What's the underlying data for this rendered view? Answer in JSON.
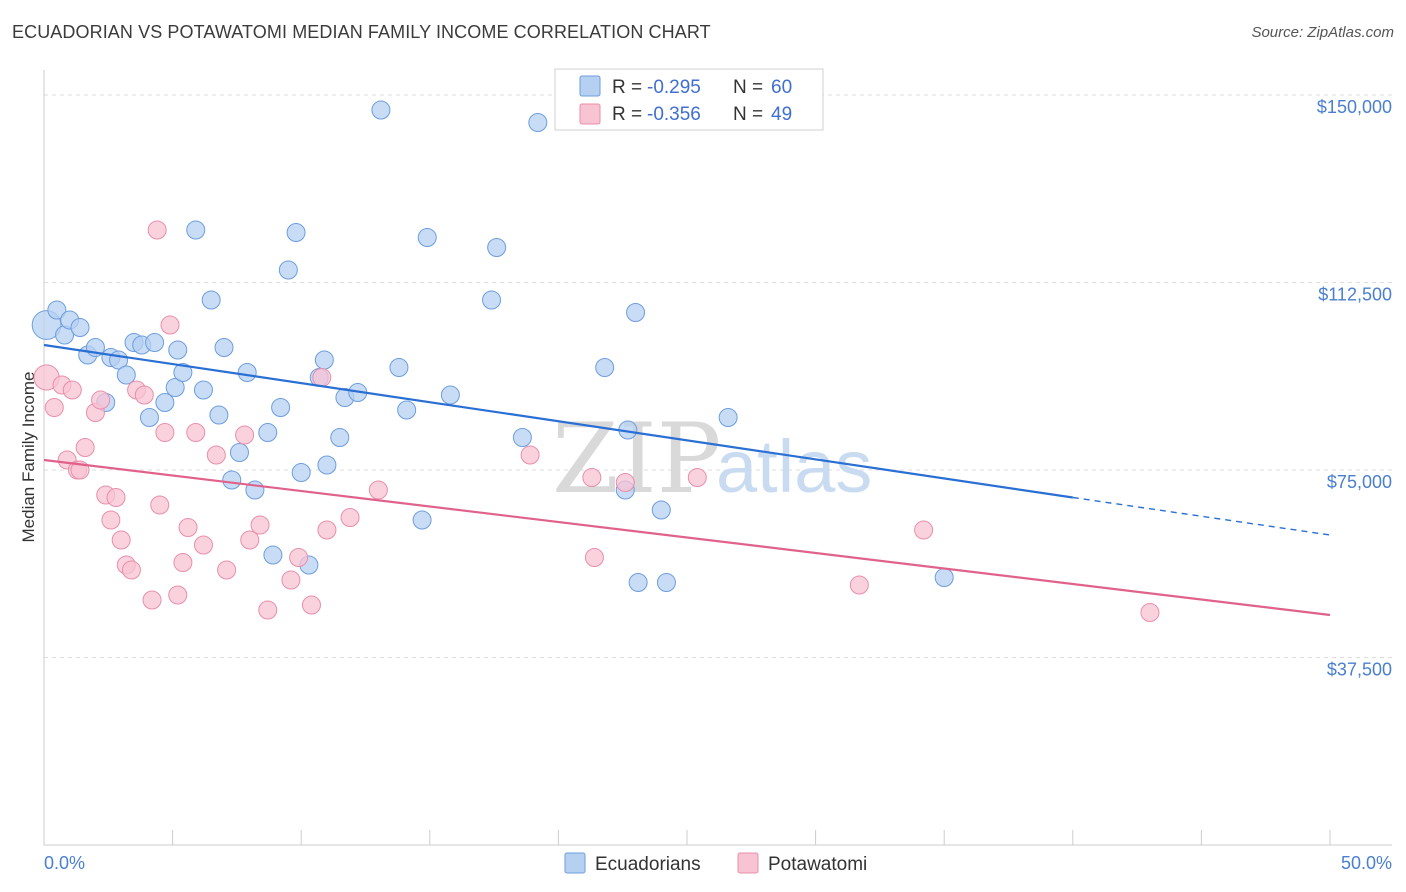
{
  "header": {
    "title": "ECUADORIAN VS POTAWATOMI MEDIAN FAMILY INCOME CORRELATION CHART",
    "source": "Source: ZipAtlas.com"
  },
  "watermark": {
    "zip": "ZIP",
    "atlas": "atlas"
  },
  "legend": {
    "rows": [
      {
        "r_label": "R =",
        "r_value": "-0.295",
        "n_label": "N =",
        "n_value": "60"
      },
      {
        "r_label": "R =",
        "r_value": "-0.356",
        "n_label": "N =",
        "n_value": "49"
      }
    ]
  },
  "bottom_legend": {
    "items": [
      "Ecuadorians",
      "Potawatomi"
    ]
  },
  "colors": {
    "blue_fill": "#b6d0f1",
    "blue_stroke": "#6d9ede",
    "blue_line": "#2a6fd4",
    "pink_fill": "#f8c3d3",
    "pink_stroke": "#e98fab",
    "pink_line": "#e0628b",
    "grid": "#dddddd",
    "axis": "#cccccc"
  },
  "chart_data": {
    "type": "scatter",
    "title": "ECUADORIAN VS POTAWATOMI MEDIAN FAMILY INCOME CORRELATION CHART",
    "xlabel": "",
    "ylabel": "Median Family Income",
    "xlim": [
      0,
      50
    ],
    "ylim": [
      0,
      155000
    ],
    "x_tick_labels": [
      "0.0%",
      "50.0%"
    ],
    "y_ticks": [
      37500,
      75000,
      112500,
      150000
    ],
    "y_tick_labels": [
      "$37,500",
      "$75,000",
      "$112,500",
      "$150,000"
    ],
    "series": [
      {
        "name": "Ecuadorians",
        "r": -0.295,
        "n": 60,
        "trend": {
          "x0": 0,
          "y0": 100000,
          "x1": 40,
          "y1": 69500,
          "dash_to_x": 50,
          "dash_to_y": 62000
        },
        "points": [
          [
            0.1,
            104000,
            1.6
          ],
          [
            0.5,
            107000,
            1.0
          ],
          [
            0.8,
            102000,
            1.0
          ],
          [
            1.0,
            105000,
            1.0
          ],
          [
            1.4,
            103500,
            1.0
          ],
          [
            1.7,
            98000,
            1.0
          ],
          [
            2.0,
            99500,
            1.0
          ],
          [
            2.4,
            88500,
            1.0
          ],
          [
            2.6,
            97500,
            1.0
          ],
          [
            2.9,
            97000,
            1.0
          ],
          [
            3.2,
            94000,
            1.0
          ],
          [
            3.5,
            100500,
            1.0
          ],
          [
            3.8,
            100000,
            1.0
          ],
          [
            4.1,
            85500,
            1.0
          ],
          [
            4.3,
            100500,
            1.0
          ],
          [
            4.7,
            88500,
            1.0
          ],
          [
            5.1,
            91500,
            1.0
          ],
          [
            5.2,
            99000,
            1.0
          ],
          [
            5.4,
            94500,
            1.0
          ],
          [
            5.9,
            123000,
            1.0
          ],
          [
            6.2,
            91000,
            1.0
          ],
          [
            6.5,
            109000,
            1.0
          ],
          [
            6.8,
            86000,
            1.0
          ],
          [
            7.0,
            99500,
            1.0
          ],
          [
            7.3,
            73000,
            1.0
          ],
          [
            7.6,
            78500,
            1.0
          ],
          [
            7.9,
            94500,
            1.0
          ],
          [
            8.2,
            71000,
            1.0
          ],
          [
            8.7,
            82500,
            1.0
          ],
          [
            8.9,
            58000,
            1.0
          ],
          [
            9.2,
            87500,
            1.0
          ],
          [
            9.5,
            115000,
            1.0
          ],
          [
            9.8,
            122500,
            1.0
          ],
          [
            10.0,
            74500,
            1.0
          ],
          [
            10.3,
            56000,
            1.0
          ],
          [
            10.7,
            93500,
            1.0
          ],
          [
            10.9,
            97000,
            1.0
          ],
          [
            11.0,
            76000,
            1.0
          ],
          [
            11.5,
            81500,
            1.0
          ],
          [
            11.7,
            89500,
            1.0
          ],
          [
            12.2,
            90500,
            1.0
          ],
          [
            13.1,
            147000,
            1.0
          ],
          [
            13.8,
            95500,
            1.0
          ],
          [
            14.1,
            87000,
            1.0
          ],
          [
            14.7,
            65000,
            1.0
          ],
          [
            14.9,
            121500,
            1.0
          ],
          [
            15.8,
            90000,
            1.0
          ],
          [
            17.4,
            109000,
            1.0
          ],
          [
            17.6,
            119500,
            1.0
          ],
          [
            18.6,
            81500,
            1.0
          ],
          [
            19.2,
            144500,
            1.0
          ],
          [
            21.8,
            95500,
            1.0
          ],
          [
            22.6,
            71000,
            1.0
          ],
          [
            22.7,
            83000,
            1.0
          ],
          [
            23.0,
            106500,
            1.0
          ],
          [
            23.1,
            52500,
            1.0
          ],
          [
            24.0,
            67000,
            1.0
          ],
          [
            24.2,
            52500,
            1.0
          ],
          [
            26.6,
            85500,
            1.0
          ],
          [
            35.0,
            53500,
            1.0
          ]
        ]
      },
      {
        "name": "Potawatomi",
        "r": -0.356,
        "n": 49,
        "trend": {
          "x0": 0,
          "y0": 77000,
          "x1": 50,
          "y1": 46000
        },
        "points": [
          [
            0.1,
            93500,
            1.4
          ],
          [
            0.4,
            87500,
            1.0
          ],
          [
            0.7,
            92000,
            1.0
          ],
          [
            0.9,
            77000,
            1.0
          ],
          [
            1.1,
            91000,
            1.0
          ],
          [
            1.3,
            75000,
            1.0
          ],
          [
            1.4,
            75000,
            1.0
          ],
          [
            1.6,
            79500,
            1.0
          ],
          [
            2.0,
            86500,
            1.0
          ],
          [
            2.2,
            89000,
            1.0
          ],
          [
            2.4,
            70000,
            1.0
          ],
          [
            2.6,
            65000,
            1.0
          ],
          [
            2.8,
            69500,
            1.0
          ],
          [
            3.0,
            61000,
            1.0
          ],
          [
            3.2,
            56000,
            1.0
          ],
          [
            3.4,
            55000,
            1.0
          ],
          [
            3.6,
            91000,
            1.0
          ],
          [
            3.9,
            90000,
            1.0
          ],
          [
            4.2,
            49000,
            1.0
          ],
          [
            4.4,
            123000,
            1.0
          ],
          [
            4.5,
            68000,
            1.0
          ],
          [
            4.7,
            82500,
            1.0
          ],
          [
            4.9,
            104000,
            1.0
          ],
          [
            5.2,
            50000,
            1.0
          ],
          [
            5.4,
            56500,
            1.0
          ],
          [
            5.6,
            63500,
            1.0
          ],
          [
            5.9,
            82500,
            1.0
          ],
          [
            6.2,
            60000,
            1.0
          ],
          [
            6.7,
            78000,
            1.0
          ],
          [
            7.1,
            55000,
            1.0
          ],
          [
            7.8,
            82000,
            1.0
          ],
          [
            8.0,
            61000,
            1.0
          ],
          [
            8.4,
            64000,
            1.0
          ],
          [
            8.7,
            47000,
            1.0
          ],
          [
            9.6,
            53000,
            1.0
          ],
          [
            9.9,
            57500,
            1.0
          ],
          [
            10.4,
            48000,
            1.0
          ],
          [
            10.8,
            93500,
            1.0
          ],
          [
            11.0,
            63000,
            1.0
          ],
          [
            11.9,
            65500,
            1.0
          ],
          [
            13.0,
            71000,
            1.0
          ],
          [
            18.9,
            78000,
            1.0
          ],
          [
            21.3,
            73500,
            1.0
          ],
          [
            21.4,
            57500,
            1.0
          ],
          [
            22.6,
            72500,
            1.0
          ],
          [
            25.4,
            73500,
            1.0
          ],
          [
            31.7,
            52000,
            1.0
          ],
          [
            34.2,
            63000,
            1.0
          ],
          [
            43.0,
            46500,
            1.0
          ]
        ]
      }
    ]
  }
}
